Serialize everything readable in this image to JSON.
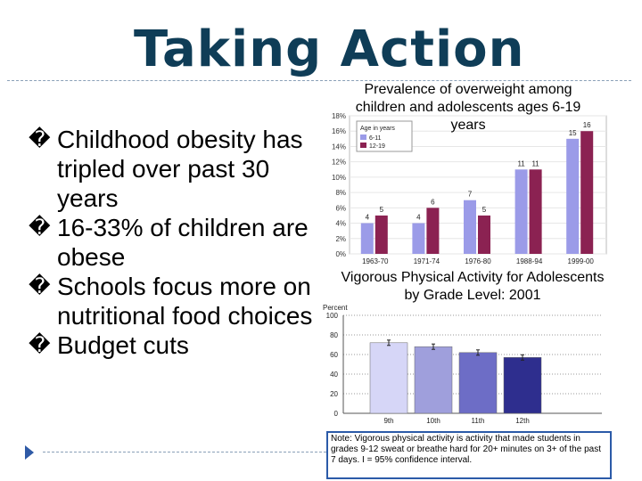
{
  "slide": {
    "title": "Taking Action",
    "bullets": [
      {
        "marker": "�",
        "text": "Childhood obesity has tripled over past 30 years"
      },
      {
        "marker": "�",
        "text": "16-33% of children are obese"
      },
      {
        "marker": "�",
        "text": "Schools focus more on nutritional food choices"
      },
      {
        "marker": "�",
        "text": "Budget cuts"
      }
    ],
    "note": "Note: Vigorous physical activity is activity that made students in grades 9-12 sweat or breathe hard for 20+ minutes on 3+ of the past 7 days. I = 95% confidence interval."
  },
  "chart_data": [
    {
      "type": "bar",
      "title": "Prevalence of overweight among children and adolescents ages 6-19 years",
      "categories": [
        "1963-70",
        "1971-74",
        "1976-80",
        "1988-94",
        "1999-00"
      ],
      "legend_title": "Age in years",
      "series": [
        {
          "name": "6-11",
          "color": "#9b9be8",
          "values": [
            4,
            4,
            7,
            11,
            15
          ]
        },
        {
          "name": "12-19",
          "color": "#8b2252",
          "values": [
            5,
            6,
            5,
            11,
            16
          ]
        }
      ],
      "ytick_labels": [
        "0%",
        "2%",
        "4%",
        "6%",
        "8%",
        "10%",
        "12%",
        "14%",
        "16%",
        "18%"
      ],
      "ylim": [
        0,
        18
      ],
      "legend_position": "top-left"
    },
    {
      "type": "bar",
      "title": "Vigorous Physical Activity for Adolescents by Grade Level: 2001",
      "ylabel": "Percent",
      "categories": [
        "9th",
        "10th",
        "11th",
        "12th"
      ],
      "values": [
        72,
        68,
        62,
        57
      ],
      "colors": [
        "#d6d6f7",
        "#9f9fdc",
        "#6d6dc6",
        "#2e2e8e"
      ],
      "ytick_labels": [
        "0",
        "20",
        "40",
        "60",
        "80",
        "100"
      ],
      "ylim": [
        0,
        100
      ],
      "error_bars": true
    }
  ]
}
